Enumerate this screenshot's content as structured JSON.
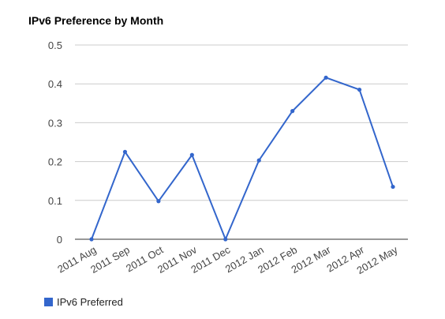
{
  "colors": {
    "series": "#3366cc",
    "grid": "#cccccc",
    "baseline": "#333333"
  },
  "chart_data": {
    "type": "line",
    "title": "IPv6 Preference by Month",
    "xlabel": "",
    "ylabel": "",
    "categories": [
      "2011 Aug",
      "2011 Sep",
      "2011 Oct",
      "2011 Nov",
      "2011 Dec",
      "2012 Jan",
      "2012 Feb",
      "2012 Mar",
      "2012 Apr",
      "2012 May"
    ],
    "series": [
      {
        "name": "IPv6 Preferred",
        "values": [
          0,
          0.225,
          0.098,
          0.217,
          0,
          0.203,
          0.33,
          0.416,
          0.385,
          0.135
        ]
      }
    ],
    "ylim": [
      0,
      0.5
    ],
    "yticks": [
      "0",
      "0.1",
      "0.2",
      "0.3",
      "0.4",
      "0.5"
    ],
    "grid": true,
    "legend": "bottom-left"
  }
}
